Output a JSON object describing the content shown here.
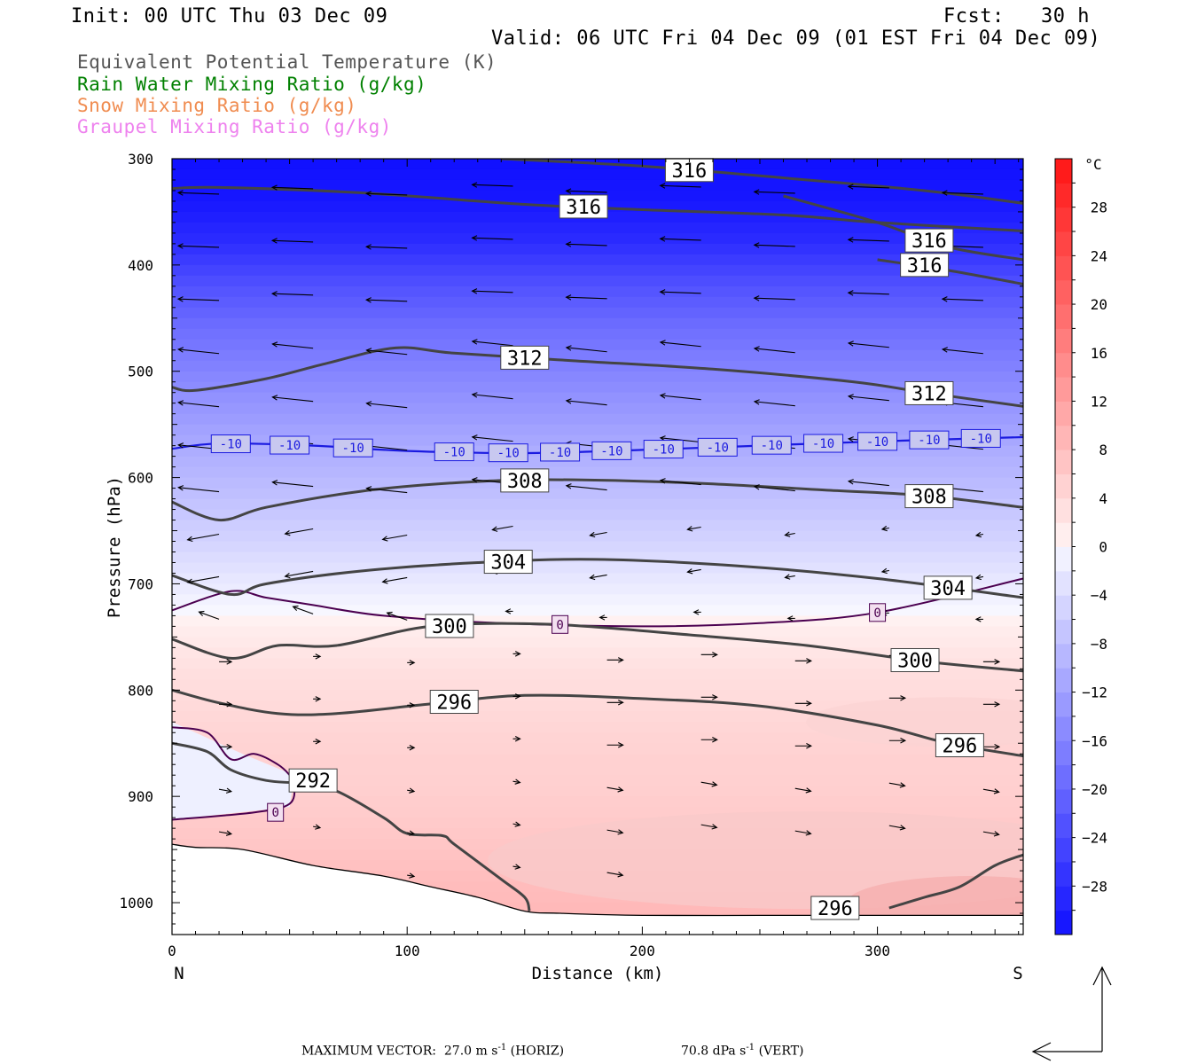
{
  "header": {
    "init": "Init: 00 UTC Thu 03 Dec 09",
    "fcst": "Fcst:   30 h",
    "valid": "Valid: 06 UTC Fri 04 Dec 09 (01 EST Fri 04 Dec 09)"
  },
  "variables": [
    {
      "label": "Equivalent Potential Temperature (K)",
      "color": "#555555"
    },
    {
      "label": "Rain Water Mixing Ratio (g/kg)",
      "color": "#008000"
    },
    {
      "label": "Snow Mixing Ratio (g/kg)",
      "color": "#f08c50"
    },
    {
      "label": "Graupel Mixing Ratio (g/kg)",
      "color": "#ee82ee"
    }
  ],
  "chart_data": {
    "type": "cross-section",
    "xlabel": "Distance (km)",
    "ylabel": "Pressure (hPa)",
    "xlim": [
      0,
      362
    ],
    "ylim": [
      300,
      1030
    ],
    "x_ticks": [
      0,
      100,
      200,
      300
    ],
    "y_ticks": [
      300,
      400,
      500,
      600,
      700,
      800,
      900,
      1000
    ],
    "x_end_labels": {
      "left": "N",
      "right": "S"
    },
    "temperature_shading": {
      "units": "°C",
      "colorbar_ticks": [
        28,
        24,
        20,
        16,
        12,
        8,
        4,
        0,
        -4,
        -8,
        -12,
        -16,
        -20,
        -24,
        -28
      ],
      "range": [
        -32,
        32
      ]
    },
    "theta_e_contours": [
      {
        "level": 316,
        "points": [
          [
            0,
            328
          ],
          [
            20,
            327
          ],
          [
            80,
            332
          ],
          [
            150,
            343
          ],
          [
            200,
            348
          ],
          [
            260,
            353
          ],
          [
            300,
            360
          ],
          [
            362,
            368
          ]
        ]
      },
      {
        "level": 316,
        "points": [
          [
            140,
            300
          ],
          [
            200,
            307
          ],
          [
            260,
            318
          ],
          [
            320,
            330
          ],
          [
            362,
            342
          ]
        ]
      },
      {
        "level": 316,
        "points": [
          [
            260,
            335
          ],
          [
            300,
            360
          ],
          [
            330,
            383
          ],
          [
            362,
            395
          ]
        ]
      },
      {
        "level": 316,
        "points": [
          [
            300,
            395
          ],
          [
            330,
            405
          ],
          [
            362,
            418
          ]
        ]
      },
      {
        "level": 312,
        "points": [
          [
            0,
            515
          ],
          [
            10,
            518
          ],
          [
            40,
            507
          ],
          [
            65,
            493
          ],
          [
            95,
            478
          ],
          [
            120,
            483
          ],
          [
            170,
            490
          ],
          [
            230,
            498
          ],
          [
            290,
            510
          ],
          [
            320,
            520
          ],
          [
            362,
            533
          ]
        ]
      },
      {
        "level": 308,
        "points": [
          [
            0,
            623
          ],
          [
            20,
            640
          ],
          [
            40,
            628
          ],
          [
            80,
            613
          ],
          [
            120,
            605
          ],
          [
            160,
            602
          ],
          [
            220,
            605
          ],
          [
            280,
            612
          ],
          [
            320,
            617
          ],
          [
            362,
            628
          ]
        ]
      },
      {
        "level": 304,
        "points": [
          [
            0,
            692
          ],
          [
            25,
            710
          ],
          [
            40,
            700
          ],
          [
            80,
            688
          ],
          [
            130,
            680
          ],
          [
            180,
            677
          ],
          [
            240,
            683
          ],
          [
            300,
            695
          ],
          [
            362,
            713
          ]
        ]
      },
      {
        "level": 300,
        "points": [
          [
            0,
            752
          ],
          [
            25,
            770
          ],
          [
            45,
            758
          ],
          [
            70,
            758
          ],
          [
            110,
            740
          ],
          [
            160,
            738
          ],
          [
            220,
            748
          ],
          [
            270,
            758
          ],
          [
            320,
            773
          ],
          [
            362,
            782
          ]
        ]
      },
      {
        "level": 296,
        "points": [
          [
            0,
            800
          ],
          [
            20,
            812
          ],
          [
            45,
            822
          ],
          [
            70,
            822
          ],
          [
            110,
            813
          ],
          [
            150,
            805
          ],
          [
            200,
            808
          ],
          [
            250,
            815
          ],
          [
            300,
            833
          ],
          [
            330,
            850
          ],
          [
            362,
            862
          ]
        ]
      },
      {
        "level": 292,
        "points": [
          [
            0,
            850
          ],
          [
            15,
            858
          ],
          [
            25,
            875
          ],
          [
            40,
            885
          ],
          [
            55,
            888
          ],
          [
            70,
            895
          ],
          [
            90,
            920
          ],
          [
            100,
            935
          ],
          [
            115,
            937
          ],
          [
            120,
            945
          ],
          [
            140,
            978
          ],
          [
            150,
            995
          ],
          [
            152,
            1008
          ]
        ]
      },
      {
        "level": 296,
        "points": [
          [
            305,
            1005
          ],
          [
            320,
            995
          ],
          [
            335,
            985
          ],
          [
            350,
            965
          ],
          [
            362,
            955
          ]
        ]
      }
    ],
    "isotherms": [
      {
        "level": -10,
        "points": [
          [
            0,
            573
          ],
          [
            20,
            568
          ],
          [
            60,
            570
          ],
          [
            100,
            575
          ],
          [
            150,
            577
          ],
          [
            200,
            574
          ],
          [
            250,
            570
          ],
          [
            300,
            566
          ],
          [
            362,
            562
          ]
        ]
      },
      {
        "level": 0,
        "points": [
          [
            0,
            725
          ],
          [
            25,
            707
          ],
          [
            40,
            713
          ],
          [
            60,
            720
          ],
          [
            90,
            730
          ],
          [
            140,
            737
          ],
          [
            200,
            740
          ],
          [
            250,
            737
          ],
          [
            300,
            727
          ],
          [
            362,
            695
          ]
        ]
      },
      {
        "level": 0,
        "points": [
          [
            0,
            835
          ],
          [
            15,
            840
          ],
          [
            25,
            865
          ],
          [
            35,
            860
          ],
          [
            45,
            870
          ],
          [
            50,
            880
          ],
          [
            52,
            888
          ],
          [
            50,
            907
          ],
          [
            35,
            915
          ],
          [
            0,
            922
          ]
        ]
      }
    ],
    "isotherm_labels": [
      {
        "level": -10,
        "x": [
          25,
          50,
          77,
          120,
          143,
          165,
          187,
          209,
          232,
          255,
          277,
          300,
          322,
          344
        ]
      },
      {
        "level": 0,
        "x": [
          165,
          300,
          44
        ]
      }
    ],
    "maximum_vector": {
      "horiz_label": "MAXIMUM VECTOR:",
      "horiz_value": "27.0",
      "horiz_unit": "m s",
      "horiz_exp": "-1",
      "horiz_tag": "(HORIZ)",
      "vert_value": "70.8",
      "vert_unit": "dPa s",
      "vert_exp": "-1",
      "vert_tag": "(VERT)"
    }
  }
}
